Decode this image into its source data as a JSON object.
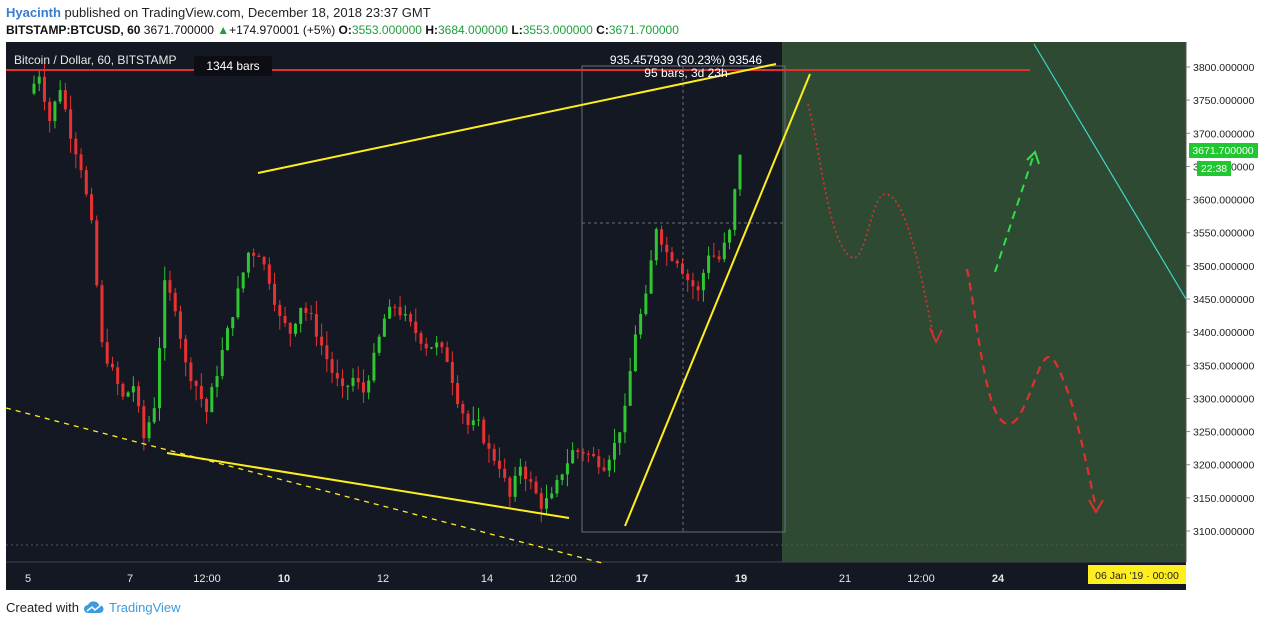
{
  "header": {
    "author": "Hyacinth",
    "published": "published on TradingView.com, December 18, 2018 23:37 GMT",
    "symbol": "BITSTAMP:BTCUSD, 60",
    "last": "3671.700000",
    "change": "+174.970001 (+5%)",
    "o_label": "O:",
    "o_value": "3553.000000",
    "h_label": "H:",
    "h_value": "3684.000000",
    "l_label": "L:",
    "l_value": "3553.000000",
    "c_label": "C:",
    "c_value": "3671.700000"
  },
  "chart": {
    "instrument_label": "Bitcoin / Dollar, 60, BITSTAMP",
    "bars_badge": "1344 bars",
    "measure_line1": "935.457939 (30.23%) 93546",
    "measure_line2": "95 bars, 3d 23h",
    "price_badge": "3671.700000",
    "timer_badge": "22:38",
    "date_badge": "06 Jan '19 · 00:00",
    "colors": {
      "background": "#141823",
      "projection_zone": "#2f4a33",
      "up_candle": "#2fc631",
      "down_candle": "#e53232",
      "trendline": "#ffee1e",
      "resistance": "#e03030",
      "cyan_line": "#3fd6c8"
    }
  },
  "chart_data": {
    "type": "candlestick",
    "y_axis_ticks": [
      "3800.000000",
      "3750.000000",
      "3700.000000",
      "3650.000000",
      "3600.000000",
      "3550.000000",
      "3500.000000",
      "3450.000000",
      "3400.000000",
      "3350.000000",
      "3300.000000",
      "3250.000000",
      "3200.000000",
      "3150.000000",
      "3100.000000"
    ],
    "ylim": [
      3050,
      3830
    ],
    "x_axis_ticks": [
      "5",
      "7",
      "12:00",
      "10",
      "12",
      "14",
      "12:00",
      "17",
      "19",
      "21",
      "12:00",
      "24"
    ],
    "last_price": 3671.7,
    "resistance_level": 3795,
    "price_path": [
      [
        0,
        3760
      ],
      [
        2,
        3790
      ],
      [
        4,
        3720
      ],
      [
        6,
        3770
      ],
      [
        8,
        3700
      ],
      [
        10,
        3650
      ],
      [
        12,
        3560
      ],
      [
        14,
        3380
      ],
      [
        16,
        3340
      ],
      [
        18,
        3300
      ],
      [
        20,
        3320
      ],
      [
        22,
        3240
      ],
      [
        24,
        3290
      ],
      [
        26,
        3470
      ],
      [
        28,
        3440
      ],
      [
        30,
        3350
      ],
      [
        32,
        3320
      ],
      [
        34,
        3280
      ],
      [
        36,
        3340
      ],
      [
        38,
        3400
      ],
      [
        40,
        3460
      ],
      [
        42,
        3520
      ],
      [
        44,
        3520
      ],
      [
        46,
        3480
      ],
      [
        48,
        3420
      ],
      [
        50,
        3400
      ],
      [
        52,
        3440
      ],
      [
        54,
        3420
      ],
      [
        56,
        3380
      ],
      [
        58,
        3340
      ],
      [
        60,
        3310
      ],
      [
        62,
        3330
      ],
      [
        64,
        3310
      ],
      [
        66,
        3360
      ],
      [
        68,
        3420
      ],
      [
        70,
        3440
      ],
      [
        72,
        3420
      ],
      [
        74,
        3400
      ],
      [
        76,
        3380
      ],
      [
        78,
        3380
      ],
      [
        80,
        3360
      ],
      [
        82,
        3300
      ],
      [
        84,
        3260
      ],
      [
        86,
        3260
      ],
      [
        88,
        3220
      ],
      [
        90,
        3200
      ],
      [
        92,
        3150
      ],
      [
        94,
        3200
      ],
      [
        96,
        3170
      ],
      [
        98,
        3140
      ],
      [
        100,
        3150
      ],
      [
        102,
        3190
      ],
      [
        104,
        3220
      ],
      [
        106,
        3220
      ],
      [
        108,
        3210
      ],
      [
        110,
        3200
      ],
      [
        112,
        3230
      ],
      [
        114,
        3280
      ],
      [
        116,
        3400
      ],
      [
        118,
        3450
      ],
      [
        120,
        3560
      ],
      [
        122,
        3520
      ],
      [
        124,
        3510
      ],
      [
        126,
        3480
      ],
      [
        128,
        3460
      ],
      [
        130,
        3520
      ],
      [
        132,
        3510
      ],
      [
        134,
        3550
      ],
      [
        136,
        3671.7
      ]
    ],
    "candle_count": 136,
    "series": [
      {
        "name": "Bitcoin / Dollar, 60, BITSTAMP",
        "values": []
      }
    ]
  },
  "footer": {
    "created_with": "Created with",
    "brand": "TradingView"
  }
}
